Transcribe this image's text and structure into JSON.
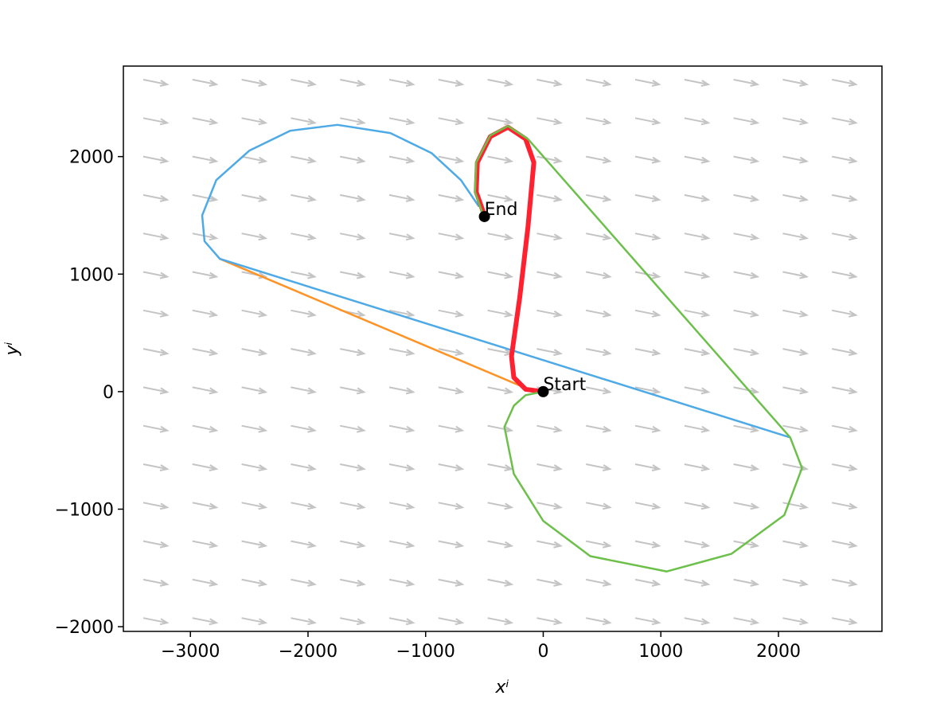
{
  "chart_data": {
    "type": "line",
    "x_label": "xⁱ",
    "y_label": "yⁱ",
    "xlim": [
      -3570,
      2880
    ],
    "ylim": [
      -2040,
      2770
    ],
    "xticks": [
      {
        "value": -3000,
        "label": "−3000"
      },
      {
        "value": -2000,
        "label": "−2000"
      },
      {
        "value": -1000,
        "label": "−1000"
      },
      0,
      1000,
      2000
    ],
    "yticks": [
      {
        "value": -2000,
        "label": "−2000"
      },
      {
        "value": -1000,
        "label": "−1000"
      },
      0,
      1000,
      2000
    ],
    "series": [
      {
        "color": "#ff9326",
        "line_width": 2.5,
        "x": [
          -100,
          -2750
        ],
        "values": [
          10,
          1130
        ]
      },
      {
        "color": "#4eaae6",
        "line_width": 2.5,
        "x": [
          -550,
          -700,
          -950,
          -1300,
          -1750,
          -2150,
          -2500,
          -2780,
          -2900,
          -2880,
          -2750,
          2100
        ],
        "values": [
          1580,
          1800,
          2030,
          2200,
          2270,
          2220,
          2050,
          1800,
          1500,
          1280,
          1130,
          -390
        ]
      },
      {
        "color": "#ff2030",
        "line_width": 6,
        "x": [
          0,
          -150,
          -250,
          -270,
          -200,
          -130,
          -80,
          -150,
          -300,
          -450,
          -560,
          -570,
          -500
        ],
        "values": [
          0,
          20,
          120,
          300,
          800,
          1400,
          1950,
          2150,
          2250,
          2170,
          1950,
          1700,
          1500
        ]
      },
      {
        "color": "#6cc04a",
        "line_width": 2.5,
        "x": [
          0,
          -150,
          -250,
          -330,
          -250,
          0,
          400,
          1050,
          1600,
          2050,
          2200,
          2100,
          -130,
          -300,
          -450,
          -570,
          -580,
          -510
        ],
        "values": [
          0,
          -30,
          -120,
          -300,
          -700,
          -1100,
          -1400,
          -1530,
          -1380,
          -1050,
          -650,
          -390,
          2150,
          2260,
          2180,
          1950,
          1700,
          1500
        ]
      }
    ],
    "annotations": [
      {
        "text": "Start",
        "x": 0,
        "y": 0
      },
      {
        "text": "End",
        "x": -500,
        "y": 1490
      }
    ]
  }
}
